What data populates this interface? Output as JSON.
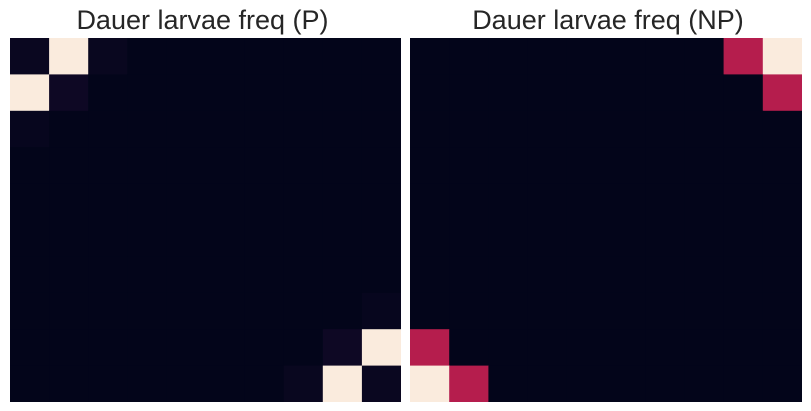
{
  "chart_data": [
    {
      "type": "heatmap",
      "title": "Dauer larvae freq (P)",
      "xlabel": "",
      "ylabel": "",
      "grid": false,
      "legend": "none",
      "rows": 10,
      "cols": 10,
      "values": [
        [
          0.05,
          1.0,
          0.04,
          0,
          0,
          0,
          0,
          0,
          0,
          0
        ],
        [
          1.0,
          0.08,
          0,
          0,
          0,
          0,
          0,
          0,
          0,
          0
        ],
        [
          0.03,
          0,
          0,
          0,
          0,
          0,
          0,
          0,
          0,
          0
        ],
        [
          0,
          0,
          0,
          0,
          0,
          0,
          0,
          0,
          0,
          0
        ],
        [
          0,
          0,
          0,
          0,
          0,
          0,
          0,
          0,
          0,
          0
        ],
        [
          0,
          0,
          0,
          0,
          0,
          0,
          0,
          0,
          0,
          0
        ],
        [
          0,
          0,
          0,
          0,
          0,
          0,
          0,
          0,
          0,
          0
        ],
        [
          0,
          0,
          0,
          0,
          0,
          0,
          0,
          0,
          0,
          0.03
        ],
        [
          0,
          0,
          0,
          0,
          0,
          0,
          0,
          0,
          0.08,
          1.0
        ],
        [
          0,
          0,
          0,
          0,
          0,
          0,
          0,
          0.04,
          1.0,
          0.05
        ]
      ]
    },
    {
      "type": "heatmap",
      "title": "Dauer larvae freq (NP)",
      "xlabel": "",
      "ylabel": "",
      "grid": false,
      "legend": "none",
      "rows": 10,
      "cols": 10,
      "values": [
        [
          0,
          0,
          0,
          0,
          0,
          0,
          0,
          0,
          0.55,
          1.0
        ],
        [
          0,
          0,
          0,
          0,
          0,
          0,
          0,
          0,
          0,
          0.55
        ],
        [
          0,
          0,
          0,
          0,
          0,
          0,
          0,
          0,
          0,
          0
        ],
        [
          0,
          0,
          0,
          0,
          0,
          0,
          0,
          0,
          0,
          0
        ],
        [
          0,
          0,
          0,
          0,
          0,
          0,
          0,
          0,
          0,
          0
        ],
        [
          0,
          0,
          0,
          0,
          0,
          0,
          0,
          0,
          0,
          0
        ],
        [
          0,
          0,
          0,
          0,
          0,
          0,
          0,
          0,
          0,
          0
        ],
        [
          0,
          0,
          0,
          0,
          0,
          0,
          0,
          0,
          0,
          0
        ],
        [
          0.55,
          0,
          0,
          0,
          0,
          0,
          0,
          0,
          0,
          0
        ],
        [
          1.0,
          0.55,
          0,
          0,
          0,
          0,
          0,
          0,
          0,
          0
        ]
      ]
    }
  ],
  "colors": {
    "colormap": [
      "#03051a",
      "#1a0c2e",
      "#4a0c4e",
      "#a1134e",
      "#e5344b",
      "#f5875e",
      "#faebdd"
    ],
    "background": "#ffffff",
    "title_text": "#262626"
  }
}
